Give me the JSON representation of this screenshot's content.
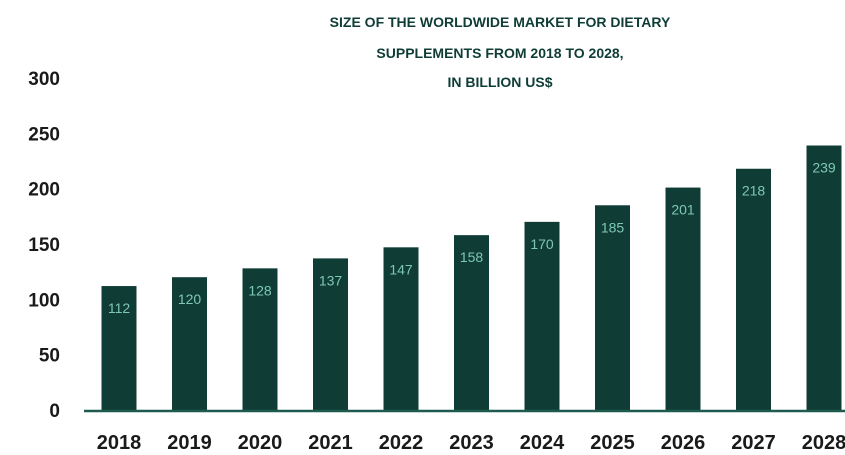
{
  "chart_data": {
    "type": "bar",
    "title_lines": [
      "SIZE OF THE WORLDWIDE MARKET FOR DIETARY",
      "SUPPLEMENTS FROM 2018 TO 2028,",
      "IN BILLION US$"
    ],
    "categories": [
      "2018",
      "2019",
      "2020",
      "2021",
      "2022",
      "2023",
      "2024",
      "2025",
      "2026",
      "2027",
      "2028"
    ],
    "values": [
      112,
      120,
      128,
      137,
      147,
      158,
      170,
      185,
      201,
      218,
      239
    ],
    "value_labels": [
      "112",
      "120",
      "128",
      "137",
      "147",
      "158",
      "170",
      "185",
      "201",
      "218",
      "239"
    ],
    "ylim": [
      0,
      300
    ],
    "yticks": [
      "0",
      "50",
      "100",
      "150",
      "200",
      "250",
      "300"
    ],
    "grid": false,
    "legend": "none",
    "xlabel": "",
    "ylabel": "",
    "colors": {
      "bar": "#0f3d36",
      "label": "#7fc7b4",
      "axis": "#1f5a50"
    }
  }
}
